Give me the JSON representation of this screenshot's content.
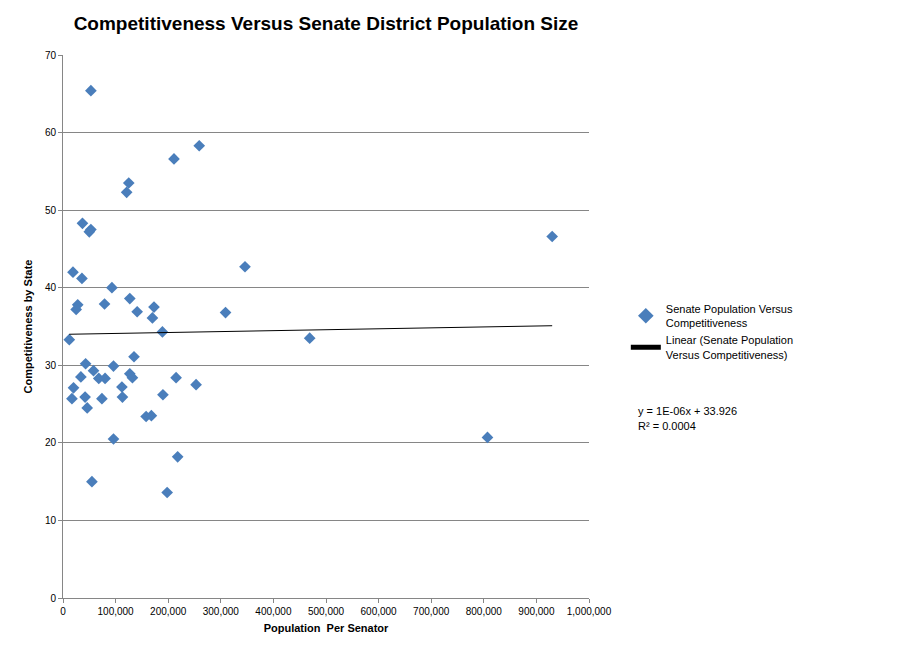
{
  "chart_data": {
    "type": "scatter",
    "title": "Competitiveness Versus Senate District Population Size",
    "x_label": "Population  Per Senator",
    "y_label": "Competitiveness by State",
    "series": [
      {
        "name": "Senate Population Versus Competitiveness",
        "color": "#4a7ebb",
        "marker": "diamond",
        "type": "scatter",
        "x": [
          53000,
          211000,
          259000,
          125000,
          121000,
          37000,
          50000,
          53000,
          346000,
          19000,
          36000,
          93000,
          28000,
          25000,
          79000,
          127000,
          141000,
          173000,
          170000,
          309000,
          189000,
          12000,
          930000,
          469000,
          135000,
          43000,
          96000,
          58000,
          127000,
          132000,
          34000,
          68000,
          80000,
          20000,
          112000,
          215000,
          253000,
          17000,
          42000,
          74000,
          113000,
          190000,
          46000,
          158000,
          168000,
          96000,
          807000,
          218000,
          55000,
          198000
        ],
        "values": [
          65.4,
          56.6,
          58.3,
          53.5,
          52.3,
          48.3,
          47.2,
          47.5,
          42.7,
          42.0,
          41.2,
          40.0,
          37.8,
          37.2,
          37.9,
          38.6,
          36.9,
          37.5,
          36.1,
          36.8,
          34.3,
          33.3,
          46.6,
          33.5,
          31.1,
          30.2,
          29.9,
          29.3,
          28.9,
          28.4,
          28.5,
          28.3,
          28.3,
          27.1,
          27.2,
          28.4,
          27.5,
          25.7,
          25.9,
          25.7,
          25.9,
          26.2,
          24.5,
          23.4,
          23.5,
          20.5,
          20.7,
          18.2,
          15.0,
          13.6
        ]
      },
      {
        "name": "Linear (Senate Population Versus Competitiveness)",
        "color": "#000000",
        "type": "line",
        "line_style": "solid",
        "x": [
          12000,
          930000
        ],
        "values": [
          34.0,
          35.1
        ]
      }
    ],
    "annotations": [
      "y = 1E-06x + 33.926",
      "R² = 0.0004"
    ],
    "xlim": [
      0,
      1000000
    ],
    "xticks": [
      0,
      {
        "value": 100000,
        "label": "100,000"
      },
      {
        "value": 200000,
        "label": "200,000"
      },
      {
        "value": 300000,
        "label": "300,000"
      },
      {
        "value": 400000,
        "label": "400,000"
      },
      {
        "value": 500000,
        "label": "500,000"
      },
      {
        "value": 600000,
        "label": "600,000"
      },
      {
        "value": 700000,
        "label": "700,000"
      },
      {
        "value": 800000,
        "label": "800,000"
      },
      {
        "value": 900000,
        "label": "900,000"
      },
      {
        "value": 1000000,
        "label": "1,000,000"
      }
    ],
    "ylim": [
      0,
      70
    ],
    "yticks": [
      0,
      10,
      20,
      30,
      40,
      50,
      60,
      70
    ],
    "grid": true,
    "legend": "right"
  }
}
